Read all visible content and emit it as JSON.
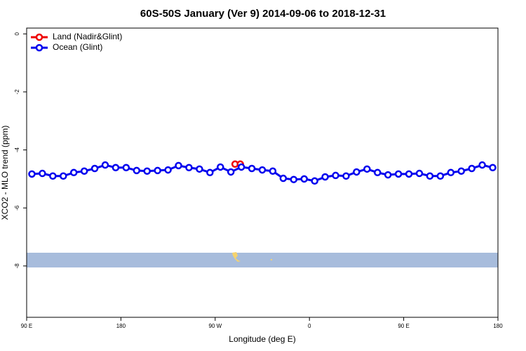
{
  "chart_data": {
    "type": "line",
    "title": "60S-50S January (Ver 9)   2014-09-06 to 2018-12-31",
    "x_label": "Longitude (deg E)",
    "y_label": "XCO2 - MLO trend (ppm)",
    "xlim": [
      90,
      540
    ],
    "ylim": [
      -9.77,
      0.2
    ],
    "xticks": [
      {
        "value": 90,
        "label": "90 E"
      },
      180,
      {
        "value": 270,
        "label": "90 W"
      },
      {
        "value": 360,
        "label": "0"
      },
      {
        "value": 450,
        "label": "90 E"
      },
      {
        "value": 540,
        "label": "180"
      }
    ],
    "yticks": [
      0,
      -2,
      -4,
      -6,
      -8
    ],
    "legend": "top-left",
    "series": [
      {
        "name": "Land (Nadir&Glint)",
        "color": "#ee0000",
        "x": [
          289,
          294
        ],
        "values": [
          -4.49,
          -4.49
        ]
      },
      {
        "name": "Ocean (Glint)",
        "color": "#0000ee",
        "x": [
          95,
          105,
          115,
          125,
          135,
          145,
          155,
          165,
          175,
          185,
          195,
          205,
          215,
          225,
          235,
          245,
          255,
          265,
          275,
          285,
          295,
          305,
          315,
          325,
          335,
          345,
          355,
          365,
          375,
          385,
          395,
          405,
          415,
          425,
          435,
          445,
          455,
          465,
          475,
          485,
          495,
          505,
          515,
          525,
          535
        ],
        "values": [
          -4.83,
          -4.81,
          -4.9,
          -4.9,
          -4.78,
          -4.73,
          -4.64,
          -4.52,
          -4.61,
          -4.61,
          -4.71,
          -4.73,
          -4.71,
          -4.69,
          -4.54,
          -4.61,
          -4.66,
          -4.78,
          -4.59,
          -4.76,
          -4.59,
          -4.64,
          -4.69,
          -4.73,
          -4.98,
          -5.02,
          -5.0,
          -5.07,
          -4.93,
          -4.88,
          -4.9,
          -4.76,
          -4.66,
          -4.78,
          -4.86,
          -4.83,
          -4.83,
          -4.81,
          -4.9,
          -4.9,
          -4.78,
          -4.73,
          -4.64,
          -4.52,
          -4.61
        ]
      }
    ]
  }
}
